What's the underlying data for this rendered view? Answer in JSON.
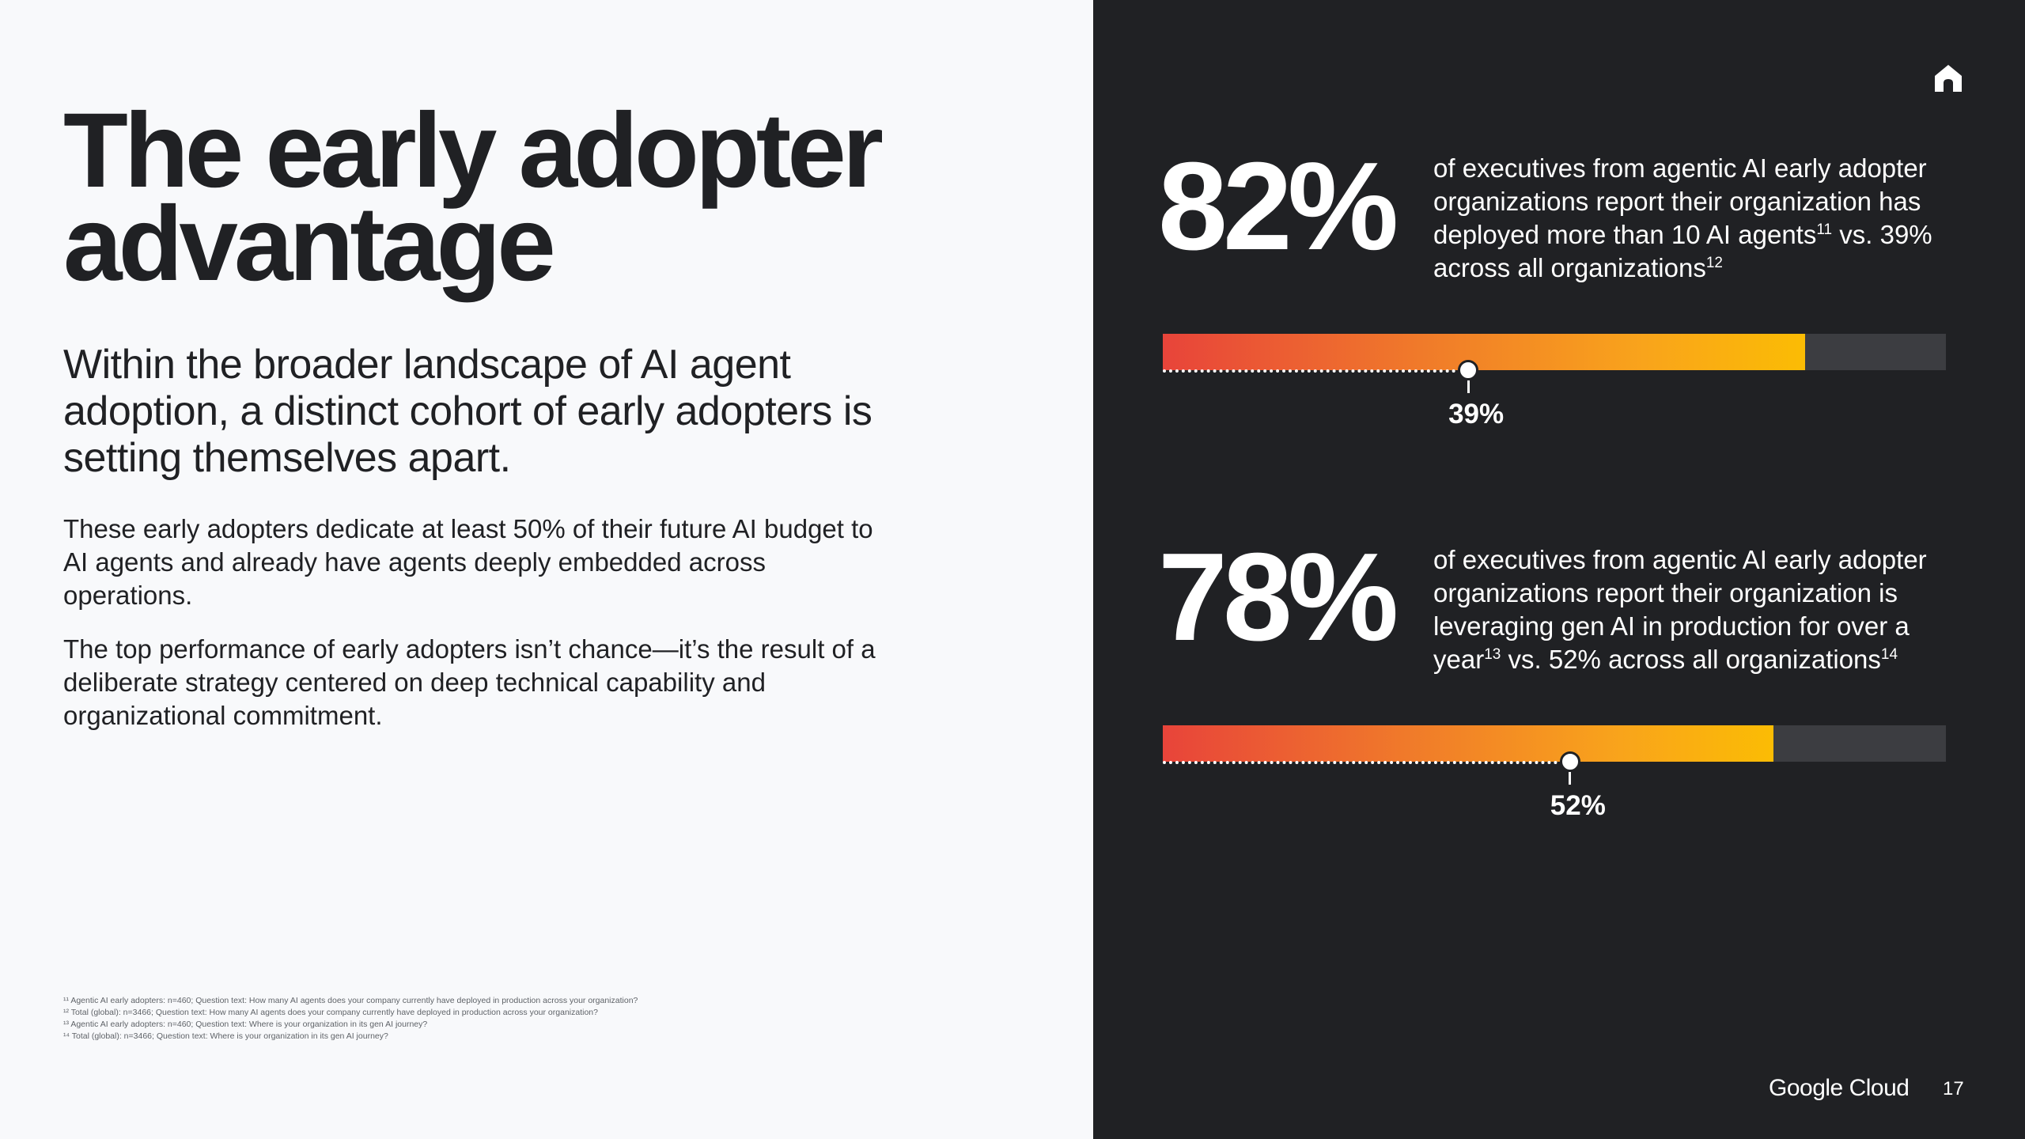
{
  "title_line1": "The early adopter",
  "title_line2": "advantage",
  "subtitle": "Within the broader landscape of AI agent adoption, a distinct cohort of early adopters is setting themselves apart.",
  "paragraph1": "These early adopters dedicate at least 50% of their future AI budget to AI agents and already have agents deeply embedded across operations.",
  "paragraph2": "The top performance of early adopters isn’t chance—it’s the result of a deliberate strategy centered on deep technical capability and organizational commitment.",
  "footnotes": [
    "¹¹ Agentic AI early adopters: n=460; Question text: How many AI agents does your company currently have deployed in production across your organization?",
    "¹² Total (global): n=3466; Question text: How many AI agents does your company currently have deployed in production across your organization?",
    "¹³ Agentic AI early adopters: n=460; Question text: Where is your organization in its gen AI journey?",
    "¹⁴ Total (global): n=3466; Question text: Where is your organization in its gen AI journey?"
  ],
  "icons": {
    "home": "home-icon"
  },
  "colors": {
    "dark_panel": "#202124",
    "light_panel": "#f8f9fb",
    "gradient_start": "#e8443a",
    "gradient_end": "#fbbc04",
    "track": "#3c3d41"
  },
  "stats": [
    {
      "value_label": "82%",
      "value": 82,
      "desc_a": "of executives from agentic AI early adopter organizations report their organization has deployed more than 10 AI agents",
      "sup_a": "11",
      "desc_b": " vs. 39% across all organizations",
      "sup_b": "12",
      "comparison_label": "39%",
      "comparison": 39
    },
    {
      "value_label": "78%",
      "value": 78,
      "desc_a": "of executives from agentic AI early adopter organizations report their organization is leveraging gen AI in production for over a year",
      "sup_a": "13",
      "desc_b": " vs. 52% across all organizations",
      "sup_b": "14",
      "comparison_label": "52%",
      "comparison": 52
    }
  ],
  "brand": "Google Cloud",
  "page_number": "17"
}
